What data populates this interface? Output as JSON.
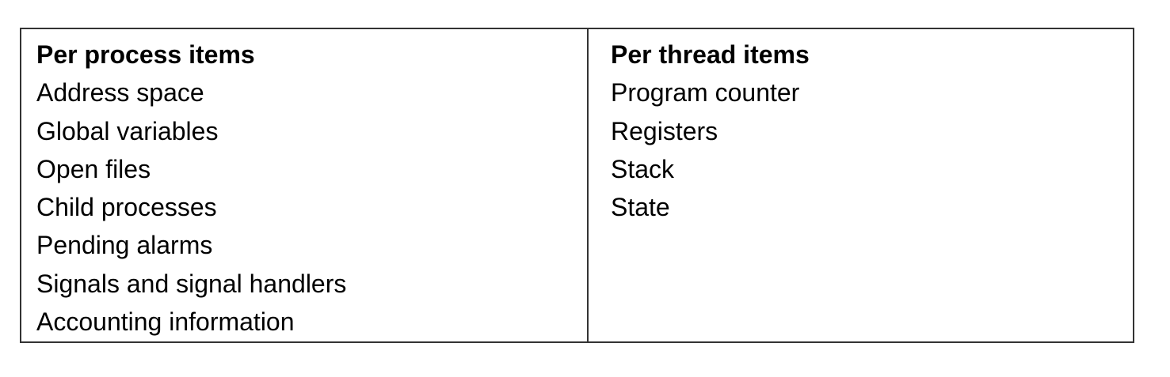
{
  "table": {
    "columns": [
      {
        "header": "Per process items",
        "items": [
          "Address space",
          "Global variables",
          "Open files",
          "Child processes",
          "Pending alarms",
          "Signals and signal handlers",
          "Accounting information"
        ]
      },
      {
        "header": "Per thread items",
        "items": [
          "Program counter",
          "Registers",
          "Stack",
          "State"
        ]
      }
    ]
  }
}
